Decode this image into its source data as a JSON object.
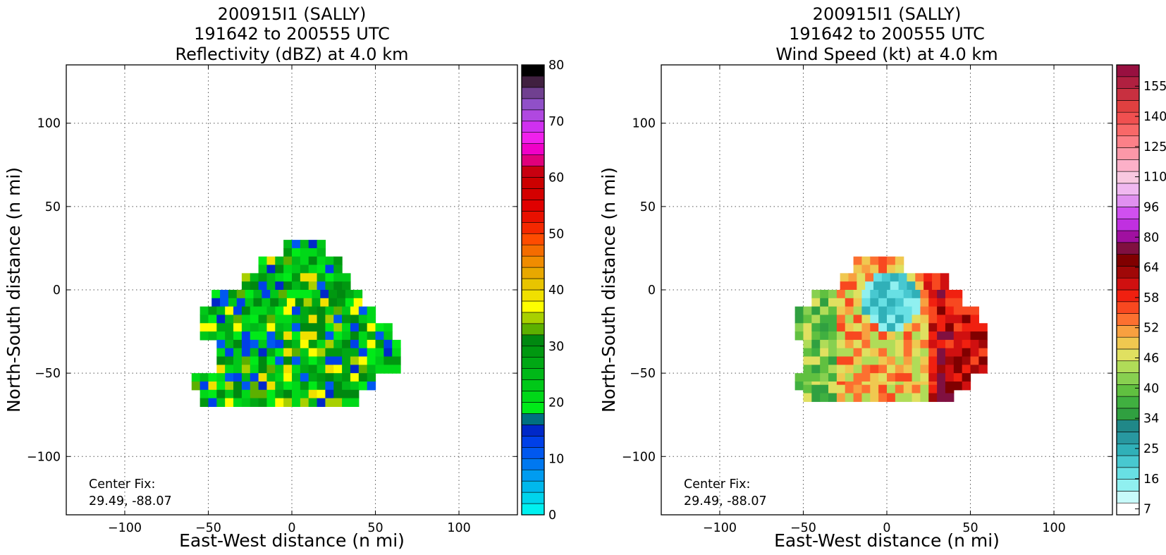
{
  "chart_data": [
    {
      "type": "heatmap",
      "title_lines": [
        "200915I1 (SALLY)",
        "191642 to 200555 UTC",
        "Reflectivity (dBZ) at 4.0 km"
      ],
      "xlabel": "East-West distance (n mi)",
      "ylabel": "North-South distance (n mi)",
      "xlim": [
        -135,
        135
      ],
      "ylim": [
        -135,
        135
      ],
      "xticks": [
        -100,
        -50,
        0,
        50,
        100
      ],
      "yticks": [
        -100,
        -50,
        0,
        50,
        100
      ],
      "xtick_labels": [
        "−100",
        "−50",
        "0",
        "50",
        "100"
      ],
      "ytick_labels": [
        "−100",
        "−50",
        "0",
        "50",
        "100"
      ],
      "grid": true,
      "annotation_lines": [
        "Center Fix:",
        "29.49, -88.07"
      ],
      "colorbar": {
        "ticks": [
          0,
          10,
          20,
          30,
          40,
          50,
          60,
          70,
          80
        ],
        "tick_labels": [
          "0",
          "10",
          "20",
          "30",
          "40",
          "50",
          "60",
          "70",
          "80"
        ],
        "colors": [
          "#00f0f0",
          "#00d4ec",
          "#00b8ec",
          "#009cf0",
          "#0078f0",
          "#0058f0",
          "#0040e8",
          "#0028c8",
          "#007080",
          "#00ea18",
          "#00d818",
          "#00c818",
          "#00b818",
          "#00a814",
          "#009810",
          "#008810",
          "#5cb000",
          "#a8d000",
          "#fefe00",
          "#f0e000",
          "#e8c400",
          "#e8a800",
          "#f08c00",
          "#f46c00",
          "#fe4c00",
          "#f42800",
          "#e81000",
          "#e00000",
          "#d40000",
          "#cc0000",
          "#c80010",
          "#e0007c",
          "#f000c8",
          "#f020ec",
          "#d030f0",
          "#b048e0",
          "#9050c8",
          "#704090",
          "#402040",
          "#000000"
        ]
      },
      "data_rows": [
        {
          "y": 25,
          "x": [
            -5,
            20
          ]
        },
        {
          "y": 15,
          "x": [
            -20,
            28
          ]
        },
        {
          "y": 5,
          "x": [
            -30,
            34
          ]
        },
        {
          "y": -5,
          "x": [
            -48,
            42
          ]
        },
        {
          "y": -15,
          "x": [
            -55,
            48
          ]
        },
        {
          "y": -25,
          "x": [
            -55,
            56
          ]
        },
        {
          "y": -35,
          "x": [
            -45,
            62
          ]
        },
        {
          "y": -45,
          "x": [
            -45,
            62
          ]
        },
        {
          "y": -55,
          "x": [
            -60,
            50
          ]
        },
        {
          "y": -65,
          "x": [
            -55,
            40
          ]
        }
      ]
    },
    {
      "type": "heatmap",
      "title_lines": [
        "200915I1 (SALLY)",
        "191642 to 200555 UTC",
        "Wind Speed (kt) at 4.0 km"
      ],
      "xlabel": "East-West distance (n mi)",
      "ylabel": "North-South distance (n mi)",
      "xlim": [
        -135,
        135
      ],
      "ylim": [
        -135,
        135
      ],
      "xticks": [
        -100,
        -50,
        0,
        50,
        100
      ],
      "yticks": [
        -100,
        -50,
        0,
        50,
        100
      ],
      "xtick_labels": [
        "−100",
        "−50",
        "0",
        "50",
        "100"
      ],
      "ytick_labels": [
        "−100",
        "−50",
        "0",
        "50",
        "100"
      ],
      "grid": true,
      "annotation_lines": [
        "Center Fix:",
        "29.49, -88.07"
      ],
      "colorbar": {
        "tick_labels": [
          "7",
          "16",
          "25",
          "34",
          "40",
          "46",
          "52",
          "58",
          "64",
          "80",
          "96",
          "110",
          "125",
          "140",
          "155"
        ],
        "colors": [
          "#ffffff",
          "#c8fafa",
          "#90f0f0",
          "#68e0e4",
          "#48c8d0",
          "#30b0b8",
          "#2898a0",
          "#208888",
          "#30a040",
          "#40b040",
          "#60c040",
          "#88d050",
          "#b0dc58",
          "#e0e060",
          "#f0c850",
          "#f8a040",
          "#fc7030",
          "#f84820",
          "#f02010",
          "#d01010",
          "#a00808",
          "#800000",
          "#801040",
          "#a010a0",
          "#c030e0",
          "#d050f0",
          "#e090f0",
          "#f0b8f0",
          "#f8c8e0",
          "#fcb0c8",
          "#fc98a8",
          "#fc8088",
          "#f86868",
          "#f05050",
          "#e04040",
          "#c83040",
          "#b02040",
          "#981040"
        ]
      },
      "data_rows": [
        {
          "y": 15,
          "x": [
            -20,
            10
          ]
        },
        {
          "y": 5,
          "x": [
            -28,
            35
          ]
        },
        {
          "y": -5,
          "x": [
            -45,
            45
          ]
        },
        {
          "y": -15,
          "x": [
            -55,
            55
          ]
        },
        {
          "y": -25,
          "x": [
            -55,
            58
          ]
        },
        {
          "y": -35,
          "x": [
            -50,
            60
          ]
        },
        {
          "y": -45,
          "x": [
            -50,
            58
          ]
        },
        {
          "y": -55,
          "x": [
            -55,
            50
          ]
        },
        {
          "y": -62,
          "x": [
            -50,
            40
          ]
        }
      ]
    }
  ]
}
